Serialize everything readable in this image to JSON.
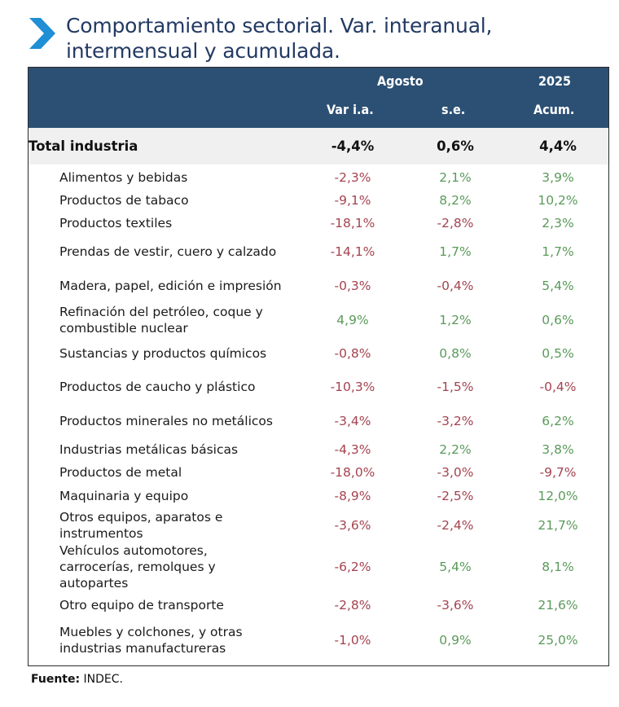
{
  "title": "Comportamiento sectorial. Var. interanual, intermensual y acumulada.",
  "title_lines": [
    "Comportamiento sectorial. Var. interanual,",
    "intermensual y acumulada."
  ],
  "colors": {
    "header_bg": "#2c5074",
    "title": "#233a63",
    "negative": "#a4434f",
    "positive": "#5a9a5a",
    "chevron": "#1f8fd6"
  },
  "header": {
    "group_month": "Agosto",
    "group_year": "2025",
    "col_var_ia": "Var i.a.",
    "col_se": "s.e.",
    "col_acum": "Acum."
  },
  "total": {
    "label": "Total industria",
    "var_ia": "-4,4%",
    "se": "0,6%",
    "acum": "4,4%"
  },
  "rows": [
    {
      "label": [
        "Alimentos y bebidas"
      ],
      "var_ia": "-2,3%",
      "se": "2,1%",
      "acum": "3,9%"
    },
    {
      "label": [
        "Productos de tabaco"
      ],
      "var_ia": "-9,1%",
      "se": "8,2%",
      "acum": "10,2%"
    },
    {
      "label": [
        "Productos textiles"
      ],
      "var_ia": "-18,1%",
      "se": "-2,8%",
      "acum": "2,3%"
    },
    {
      "label": [
        "Prendas de vestir, cuero y calzado"
      ],
      "var_ia": "-14,1%",
      "se": "1,7%",
      "acum": "1,7%"
    },
    {
      "label": [
        "Madera, papel, edición e impresión"
      ],
      "var_ia": "-0,3%",
      "se": "-0,4%",
      "acum": "5,4%"
    },
    {
      "label": [
        "Refinación del petróleo, coque y",
        "combustible nuclear"
      ],
      "var_ia": "4,9%",
      "se": "1,2%",
      "acum": "0,6%"
    },
    {
      "label": [
        "Sustancias y productos químicos"
      ],
      "var_ia": "-0,8%",
      "se": "0,8%",
      "acum": "0,5%"
    },
    {
      "label": [
        "Productos de caucho y plástico"
      ],
      "var_ia": "-10,3%",
      "se": "-1,5%",
      "acum": "-0,4%"
    },
    {
      "label": [
        "Productos minerales no metálicos"
      ],
      "var_ia": "-3,4%",
      "se": "-3,2%",
      "acum": "6,2%"
    },
    {
      "label": [
        "Industrias metálicas básicas"
      ],
      "var_ia": "-4,3%",
      "se": "2,2%",
      "acum": "3,8%"
    },
    {
      "label": [
        "Productos de metal"
      ],
      "var_ia": "-18,0%",
      "se": "-3,0%",
      "acum": "-9,7%"
    },
    {
      "label": [
        "Maquinaria y equipo"
      ],
      "var_ia": "-8,9%",
      "se": "-2,5%",
      "acum": "12,0%"
    },
    {
      "label": [
        "Otros equipos, aparatos e",
        "instrumentos"
      ],
      "var_ia": "-3,6%",
      "se": "-2,4%",
      "acum": "21,7%"
    },
    {
      "label": [
        "Vehículos automotores,",
        "carrocerías, remolques y",
        "autopartes"
      ],
      "var_ia": "-6,2%",
      "se": "5,4%",
      "acum": "8,1%"
    },
    {
      "label": [
        "Otro equipo de transporte"
      ],
      "var_ia": "-2,8%",
      "se": "-3,6%",
      "acum": "21,6%"
    },
    {
      "label": [
        "Muebles y colchones, y otras",
        "industrias manufactureras"
      ],
      "var_ia": "-1,0%",
      "se": "0,9%",
      "acum": "25,0%"
    }
  ],
  "footer": {
    "label": "Fuente:",
    "value": "INDEC."
  }
}
